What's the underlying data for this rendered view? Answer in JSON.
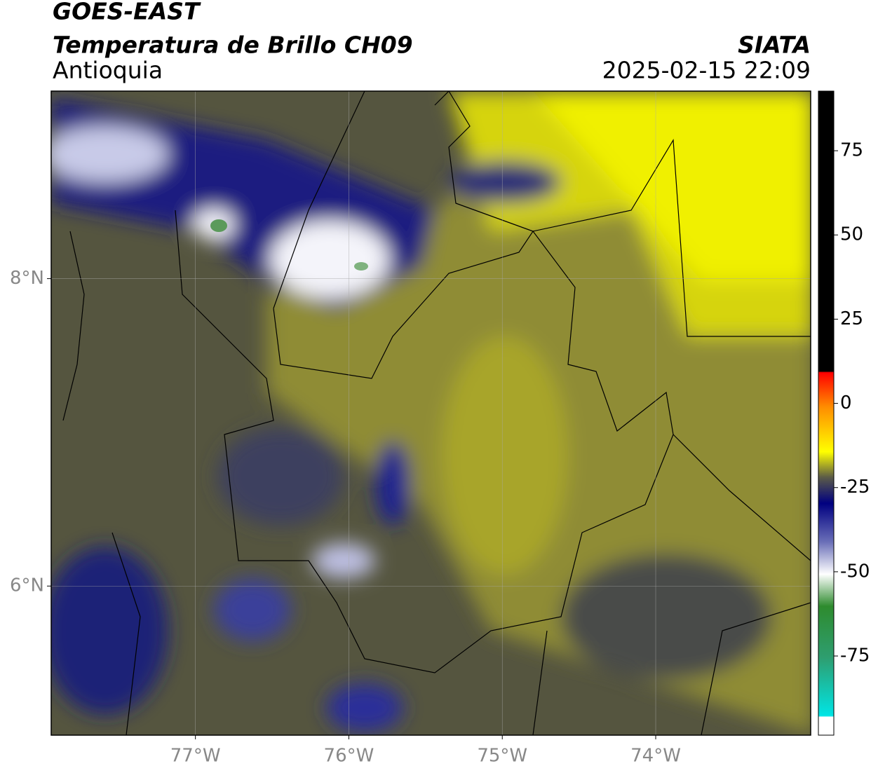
{
  "title": "GOES-EAST",
  "subtitle": "Temperatura de Brillo CH09",
  "region": "Antioquia",
  "source": "SIATA",
  "datetime": "2025-02-15 22:09",
  "map": {
    "xlim": [
      -77.94,
      -72.99
    ],
    "ylim": [
      5.03,
      9.22
    ],
    "xticks": [
      {
        "value": -77,
        "label": "77°W"
      },
      {
        "value": -76,
        "label": "76°W"
      },
      {
        "value": -75,
        "label": "75°W"
      },
      {
        "value": -74,
        "label": "74°W"
      }
    ],
    "yticks": [
      {
        "value": 6,
        "label": "6°N"
      },
      {
        "value": 8,
        "label": "8°N"
      }
    ],
    "grid": true
  },
  "colorbar": {
    "clim": [
      -98.5,
      92.7
    ],
    "ticks": [
      -75,
      -50,
      -25,
      0,
      25,
      50,
      75
    ]
  }
}
